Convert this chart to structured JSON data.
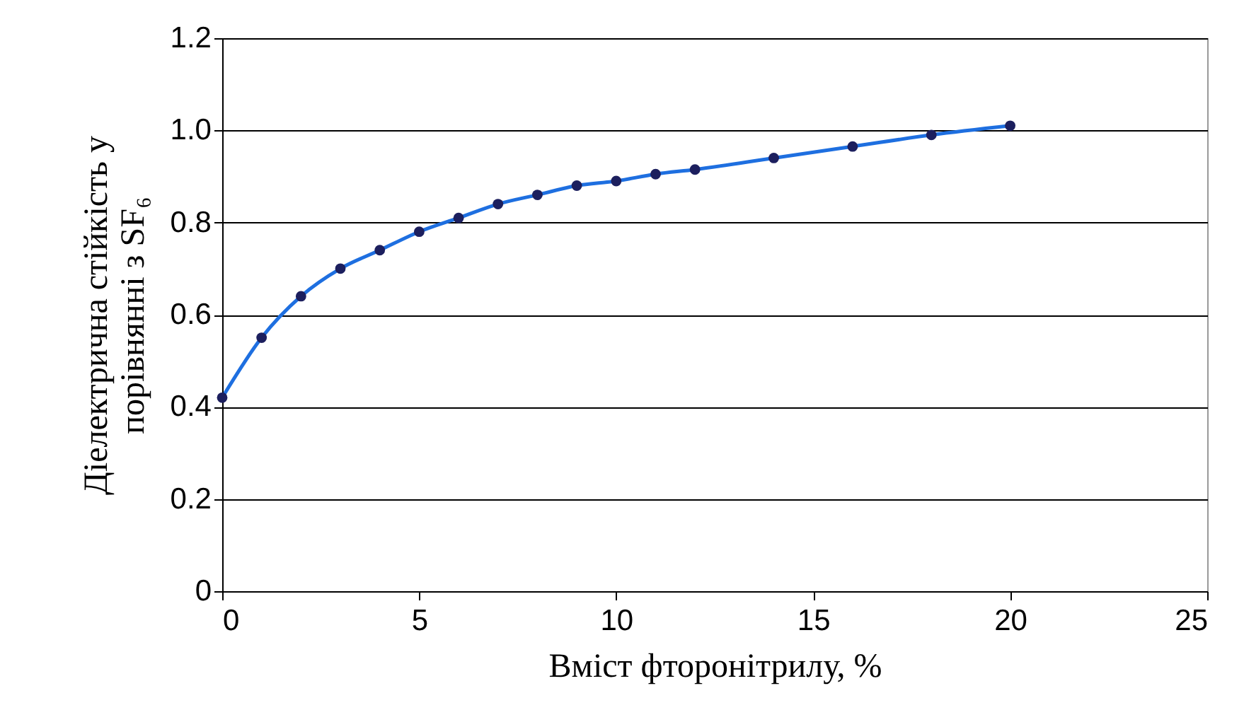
{
  "chart_data": {
    "type": "line",
    "xlabel": "Вміст фторонітрилу, %",
    "ylabel": "Діелектрична стійкість у\nпорівнянні з SF₆",
    "x": [
      0,
      1,
      2,
      3,
      4,
      5,
      6,
      7,
      8,
      9,
      10,
      11,
      12,
      14,
      16,
      18,
      20
    ],
    "series": [
      {
        "color": "#1e6fe0",
        "values": [
          0.42,
          0.55,
          0.64,
          0.7,
          0.74,
          0.78,
          0.81,
          0.84,
          0.86,
          0.88,
          0.89,
          0.905,
          0.915,
          0.94,
          0.965,
          0.99,
          1.01
        ]
      }
    ],
    "xlim": [
      0,
      25
    ],
    "xticks": [
      0,
      5,
      10,
      15,
      20,
      25
    ],
    "ylim": [
      0,
      1.2
    ],
    "yticks": [
      0,
      {
        "value": 0.2,
        "label": "0.2"
      },
      {
        "value": 0.4,
        "label": "0.4"
      },
      {
        "value": 0.6,
        "label": "0.6"
      },
      {
        "value": 0.8,
        "label": "0.8"
      },
      {
        "value": 1,
        "label": "1.0"
      },
      {
        "value": 1.2,
        "label": "1.2"
      }
    ],
    "grid": "y",
    "marker": "circle",
    "line_style": "solid",
    "legend": false
  }
}
